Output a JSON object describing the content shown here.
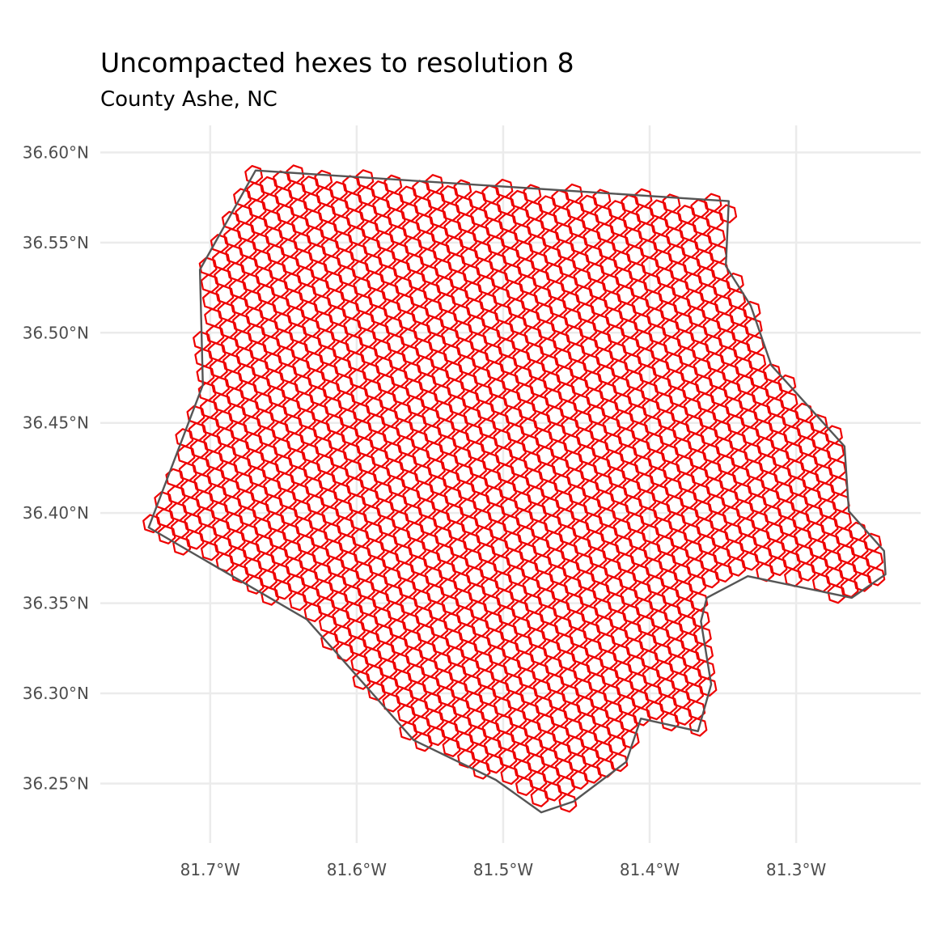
{
  "title": "Uncompacted hexes to resolution 8",
  "subtitle": "County Ashe, NC",
  "colors": {
    "hex_stroke": "#ee0000",
    "boundary_stroke": "#555555",
    "grid": "#ebebeb",
    "tick_text": "#4d4d4d"
  },
  "axes": {
    "lon_range": [
      -81.775,
      -81.215
    ],
    "lat_range": [
      36.217,
      36.615
    ],
    "x_ticks": [
      {
        "value": -81.7,
        "label": "81.7°W"
      },
      {
        "value": -81.6,
        "label": "81.6°W"
      },
      {
        "value": -81.5,
        "label": "81.5°W"
      },
      {
        "value": -81.4,
        "label": "81.4°W"
      },
      {
        "value": -81.3,
        "label": "81.3°W"
      }
    ],
    "y_ticks": [
      {
        "value": 36.25,
        "label": "36.25°N"
      },
      {
        "value": 36.3,
        "label": "36.30°N"
      },
      {
        "value": 36.35,
        "label": "36.35°N"
      },
      {
        "value": 36.4,
        "label": "36.40°N"
      },
      {
        "value": 36.45,
        "label": "36.45°N"
      },
      {
        "value": 36.5,
        "label": "36.50°N"
      },
      {
        "value": 36.55,
        "label": "36.55°N"
      },
      {
        "value": 36.6,
        "label": "36.60°N"
      }
    ]
  },
  "county_boundary": [
    [
      -81.669,
      36.59
    ],
    [
      -81.346,
      36.573
    ],
    [
      -81.348,
      36.537
    ],
    [
      -81.331,
      36.515
    ],
    [
      -81.317,
      36.482
    ],
    [
      -81.267,
      36.437
    ],
    [
      -81.264,
      36.401
    ],
    [
      -81.24,
      36.379
    ],
    [
      -81.239,
      36.366
    ],
    [
      -81.262,
      36.353
    ],
    [
      -81.333,
      36.365
    ],
    [
      -81.361,
      36.353
    ],
    [
      -81.365,
      36.34
    ],
    [
      -81.358,
      36.305
    ],
    [
      -81.367,
      36.279
    ],
    [
      -81.406,
      36.286
    ],
    [
      -81.416,
      36.262
    ],
    [
      -81.452,
      36.24
    ],
    [
      -81.474,
      36.234
    ],
    [
      -81.505,
      36.252
    ],
    [
      -81.561,
      36.274
    ],
    [
      -81.634,
      36.341
    ],
    [
      -81.742,
      36.392
    ],
    [
      -81.705,
      36.471
    ],
    [
      -81.707,
      36.535
    ],
    [
      -81.669,
      36.59
    ]
  ],
  "hex_grid": {
    "resolution": 8,
    "origin": [
      -81.7411,
      36.4036
    ],
    "axis_a": [
      0.00902,
      0.00326
    ],
    "axis_b": [
      -0.00121,
      0.00947
    ],
    "cell_size": 0.0049
  }
}
